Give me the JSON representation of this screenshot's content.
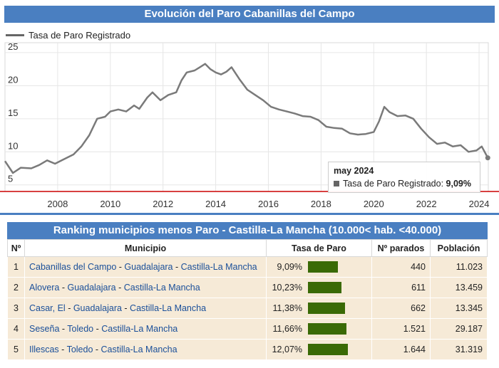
{
  "chart_data": {
    "type": "line",
    "title": "Evolución del Paro Cabanillas del Campo",
    "legend": "Tasa de Paro Registrado",
    "series": [
      {
        "name": "Tasa de Paro Registrado",
        "points": [
          [
            2006.0,
            8.6
          ],
          [
            2006.3,
            6.8
          ],
          [
            2006.6,
            7.6
          ],
          [
            2007.0,
            7.5
          ],
          [
            2007.3,
            8.0
          ],
          [
            2007.6,
            8.7
          ],
          [
            2007.9,
            8.2
          ],
          [
            2008.2,
            8.8
          ],
          [
            2008.6,
            9.6
          ],
          [
            2008.9,
            10.8
          ],
          [
            2009.2,
            12.5
          ],
          [
            2009.5,
            15.0
          ],
          [
            2009.8,
            15.3
          ],
          [
            2010.0,
            16.1
          ],
          [
            2010.3,
            16.4
          ],
          [
            2010.6,
            16.1
          ],
          [
            2010.9,
            17.0
          ],
          [
            2011.1,
            16.5
          ],
          [
            2011.4,
            18.2
          ],
          [
            2011.6,
            19.0
          ],
          [
            2011.9,
            17.8
          ],
          [
            2012.2,
            18.6
          ],
          [
            2012.5,
            19.0
          ],
          [
            2012.7,
            20.8
          ],
          [
            2012.9,
            22.0
          ],
          [
            2013.2,
            22.3
          ],
          [
            2013.4,
            22.8
          ],
          [
            2013.6,
            23.3
          ],
          [
            2013.8,
            22.5
          ],
          [
            2014.0,
            22.0
          ],
          [
            2014.2,
            21.7
          ],
          [
            2014.4,
            22.1
          ],
          [
            2014.6,
            22.8
          ],
          [
            2014.9,
            21.0
          ],
          [
            2015.2,
            19.4
          ],
          [
            2015.5,
            18.6
          ],
          [
            2015.8,
            17.8
          ],
          [
            2016.1,
            16.8
          ],
          [
            2016.4,
            16.4
          ],
          [
            2016.7,
            16.1
          ],
          [
            2017.0,
            15.8
          ],
          [
            2017.3,
            15.4
          ],
          [
            2017.6,
            15.3
          ],
          [
            2017.9,
            14.8
          ],
          [
            2018.2,
            13.8
          ],
          [
            2018.5,
            13.6
          ],
          [
            2018.8,
            13.5
          ],
          [
            2019.1,
            12.8
          ],
          [
            2019.4,
            12.6
          ],
          [
            2019.7,
            12.7
          ],
          [
            2020.0,
            13.0
          ],
          [
            2020.2,
            14.6
          ],
          [
            2020.4,
            16.8
          ],
          [
            2020.6,
            16.0
          ],
          [
            2020.9,
            15.4
          ],
          [
            2021.2,
            15.5
          ],
          [
            2021.5,
            15.0
          ],
          [
            2021.8,
            13.5
          ],
          [
            2022.1,
            12.2
          ],
          [
            2022.4,
            11.2
          ],
          [
            2022.7,
            11.4
          ],
          [
            2023.0,
            10.8
          ],
          [
            2023.3,
            11.0
          ],
          [
            2023.6,
            10.0
          ],
          [
            2023.9,
            10.2
          ],
          [
            2024.1,
            10.8
          ],
          [
            2024.33,
            9.09
          ]
        ]
      }
    ],
    "x_ticks": [
      "2008",
      "2010",
      "2012",
      "2014",
      "2016",
      "2018",
      "2020",
      "2022",
      "2024"
    ],
    "y_ticks": [
      "5",
      "10",
      "15",
      "20",
      "25"
    ],
    "xlim": [
      2006.0,
      2024.35
    ],
    "ylim": [
      4.0,
      26.5
    ],
    "reference_line_y": 4.0,
    "grid": true,
    "tooltip": {
      "date": "may 2024",
      "label": "Tasa de Paro Registrado:",
      "value": "9,09%"
    },
    "colors": {
      "line": "#7a7a7a",
      "grid": "#e6e6e6",
      "reference_line": "#cc0000",
      "header": "#4a7fc1"
    }
  },
  "ranking": {
    "title": "Ranking municipios menos Paro - Castilla-La Mancha (10.000< hab. <40.000)",
    "headers": [
      "Nº",
      "Municipio",
      "Tasa de Paro",
      "Nº parados",
      "Población"
    ],
    "bar_color": "#3a6a06",
    "rows": [
      {
        "rank": "1",
        "municipio": "Cabanillas del Campo",
        "provincia": "Guadalajara",
        "comunidad": "Castilla-La Mancha",
        "tasa": "9,09%",
        "tasa_value": 9.09,
        "parados": "440",
        "poblacion": "11.023"
      },
      {
        "rank": "2",
        "municipio": "Alovera",
        "provincia": "Guadalajara",
        "comunidad": "Castilla-La Mancha",
        "tasa": "10,23%",
        "tasa_value": 10.23,
        "parados": "611",
        "poblacion": "13.459"
      },
      {
        "rank": "3",
        "municipio": "Casar, El",
        "provincia": "Guadalajara",
        "comunidad": "Castilla-La Mancha",
        "tasa": "11,38%",
        "tasa_value": 11.38,
        "parados": "662",
        "poblacion": "13.345"
      },
      {
        "rank": "4",
        "municipio": "Seseña",
        "provincia": "Toledo",
        "comunidad": "Castilla-La Mancha",
        "tasa": "11,66%",
        "tasa_value": 11.66,
        "parados": "1.521",
        "poblacion": "29.187"
      },
      {
        "rank": "5",
        "municipio": "Illescas",
        "provincia": "Toledo",
        "comunidad": "Castilla-La Mancha",
        "tasa": "12,07%",
        "tasa_value": 12.07,
        "parados": "1.644",
        "poblacion": "31.319"
      }
    ]
  }
}
